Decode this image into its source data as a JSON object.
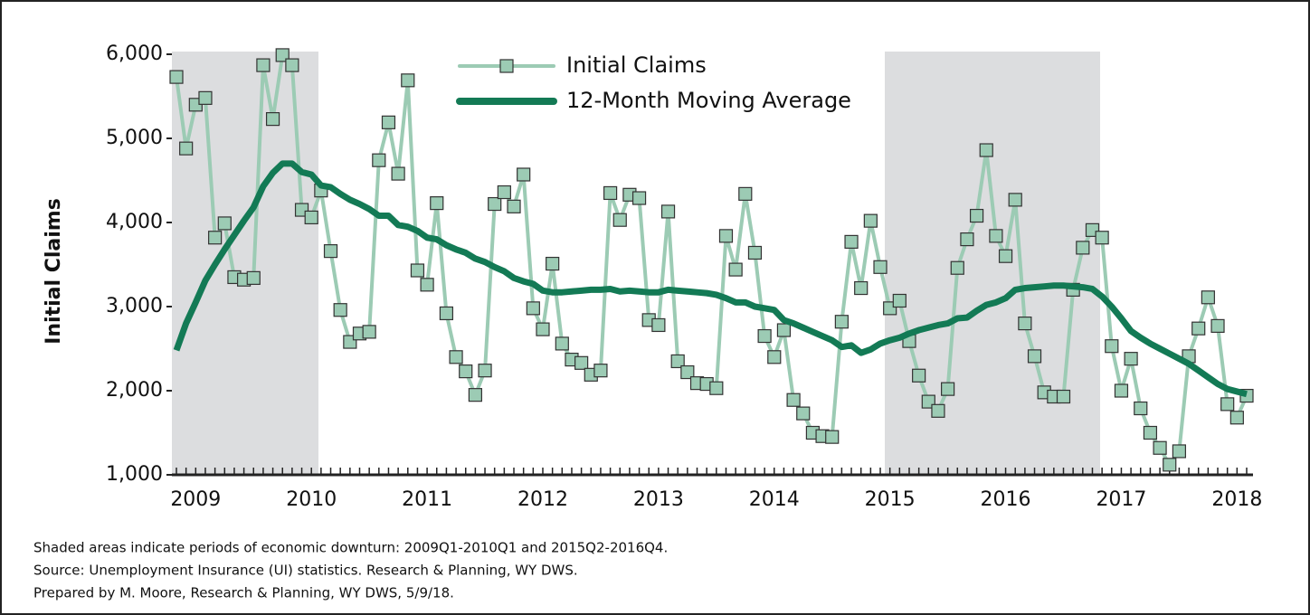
{
  "chart_data": {
    "type": "line",
    "categories": [
      null,
      null,
      "2009",
      null,
      null,
      null,
      null,
      null,
      null,
      null,
      null,
      null,
      null,
      null,
      "2010",
      null,
      null,
      null,
      null,
      null,
      null,
      null,
      null,
      null,
      null,
      null,
      "2011",
      null,
      null,
      null,
      null,
      null,
      null,
      null,
      null,
      null,
      null,
      null,
      "2012",
      null,
      null,
      null,
      null,
      null,
      null,
      null,
      null,
      null,
      null,
      null,
      "2013",
      null,
      null,
      null,
      null,
      null,
      null,
      null,
      null,
      null,
      null,
      null,
      "2014",
      null,
      null,
      null,
      null,
      null,
      null,
      null,
      null,
      null,
      null,
      null,
      "2015",
      null,
      null,
      null,
      null,
      null,
      null,
      null,
      null,
      null,
      null,
      null,
      "2016",
      null,
      null,
      null,
      null,
      null,
      null,
      null,
      null,
      null,
      null,
      null,
      "2017",
      null,
      null,
      null,
      null,
      null,
      null,
      null,
      null,
      null,
      null,
      null,
      "2018",
      null
    ],
    "series": [
      {
        "name": "Initial Claims",
        "color": "#9ccbb4",
        "marker_color": "#9ccbb4",
        "values": [
          5730,
          4880,
          5400,
          5480,
          3820,
          3990,
          3350,
          3320,
          3340,
          5870,
          5230,
          5990,
          5870,
          4150,
          4060,
          4380,
          3660,
          2960,
          2580,
          2680,
          2700,
          4740,
          5190,
          4580,
          5690,
          3430,
          3260,
          4230,
          2920,
          2400,
          2230,
          1950,
          2240,
          4220,
          4360,
          4190,
          4570,
          2980,
          2730,
          3510,
          2560,
          2370,
          2330,
          2190,
          2240,
          4350,
          4030,
          4330,
          4290,
          2840,
          2780,
          4130,
          2350,
          2220,
          2090,
          2080,
          2030,
          3840,
          3440,
          4340,
          3640,
          2650,
          2400,
          2720,
          1890,
          1730,
          1500,
          1460,
          1450,
          2820,
          3770,
          3220,
          4020,
          3470,
          2980,
          3070,
          2590,
          2180,
          1870,
          1760,
          2020,
          3460,
          3800,
          4080,
          4860,
          3840,
          3600,
          4270,
          2800,
          2410,
          1980,
          1930,
          1930,
          3200,
          3700,
          3910,
          3820,
          2530,
          2000,
          2380,
          1790,
          1500,
          1320,
          1120,
          1280,
          2410,
          2740,
          3110,
          2770,
          1840,
          1680,
          1940
        ]
      },
      {
        "name": "12-Month Moving Average",
        "color": "#137a55",
        "values": [
          2480,
          2800,
          3050,
          3310,
          3500,
          3680,
          3850,
          4020,
          4180,
          4430,
          4590,
          4700,
          4700,
          4600,
          4570,
          4440,
          4420,
          4340,
          4270,
          4220,
          4160,
          4080,
          4080,
          3970,
          3950,
          3900,
          3820,
          3800,
          3730,
          3680,
          3640,
          3570,
          3530,
          3470,
          3420,
          3340,
          3300,
          3270,
          3190,
          3170,
          3170,
          3180,
          3190,
          3200,
          3200,
          3210,
          3180,
          3190,
          3180,
          3170,
          3170,
          3200,
          3190,
          3180,
          3170,
          3160,
          3140,
          3100,
          3050,
          3050,
          3000,
          2980,
          2960,
          2840,
          2800,
          2750,
          2700,
          2650,
          2600,
          2520,
          2540,
          2450,
          2490,
          2560,
          2600,
          2630,
          2680,
          2720,
          2750,
          2780,
          2800,
          2860,
          2870,
          2950,
          3020,
          3050,
          3100,
          3200,
          3220,
          3230,
          3240,
          3250,
          3250,
          3240,
          3230,
          3210,
          3120,
          3000,
          2860,
          2710,
          2630,
          2560,
          2500,
          2440,
          2380,
          2320,
          2240,
          2160,
          2080,
          2020,
          1990,
          1960
        ]
      }
    ],
    "y_label": "Initial Claims",
    "ylim": [
      1000,
      6000
    ],
    "yticks": [
      {
        "value": 1000,
        "label": "1,000"
      },
      {
        "value": 2000,
        "label": "2,000"
      },
      {
        "value": 3000,
        "label": "3,000"
      },
      {
        "value": 4000,
        "label": "4,000"
      },
      {
        "value": 5000,
        "label": "5,000"
      },
      {
        "value": 6000,
        "label": "6,000"
      }
    ],
    "legend": "top",
    "notes": [
      "Shaded areas indicate periods of economic downturn: 2009Q1-2010Q1 and 2015Q2-2016Q4.",
      "Source: Unemployment Insurance (UI) statistics. Research & Planning, WY DWS.",
      "Prepared by M. Moore, Research & Planning, WY DWS, 5/9/18."
    ]
  }
}
